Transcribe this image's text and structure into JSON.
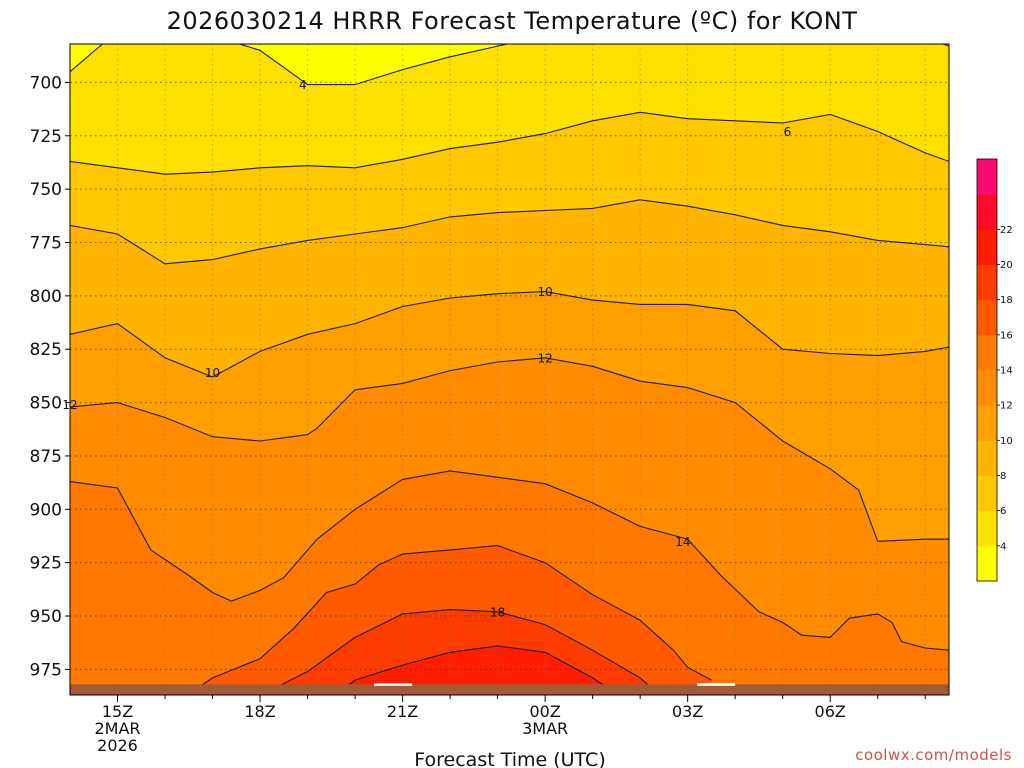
{
  "chart_data": {
    "type": "heatmap",
    "title": "2026030214 HRRR Forecast Temperature (ºC) for KONT",
    "xlabel": "Forecast Time (UTC)",
    "ylabel": "",
    "x_ticks": [
      {
        "hour": 15,
        "lines": [
          "15Z",
          "2MAR",
          "2026"
        ]
      },
      {
        "hour": 18,
        "lines": [
          "18Z"
        ]
      },
      {
        "hour": 21,
        "lines": [
          "21Z"
        ]
      },
      {
        "hour": 24,
        "lines": [
          "00Z",
          "3MAR"
        ]
      },
      {
        "hour": 27,
        "lines": [
          "03Z"
        ]
      },
      {
        "hour": 30,
        "lines": [
          "06Z"
        ]
      }
    ],
    "xlim": [
      14,
      32.5
    ],
    "y_ticks": [
      700,
      725,
      750,
      775,
      800,
      825,
      850,
      875,
      900,
      925,
      950,
      975
    ],
    "ylim": [
      987,
      682
    ],
    "grid": true,
    "colorbar": {
      "placement": "right",
      "levels": [
        2,
        4,
        6,
        8,
        10,
        12,
        14,
        16,
        18,
        20,
        22,
        24
      ],
      "labels": [
        "4",
        "6",
        "8",
        "10",
        "12",
        "14",
        "16",
        "18",
        "20",
        "22"
      ],
      "colors": [
        "#ffff00",
        "#ffe100",
        "#ffc800",
        "#ffb400",
        "#ffa000",
        "#ff8c00",
        "#ff7800",
        "#ff5a00",
        "#ff3c00",
        "#ff1e00",
        "#ff0a28",
        "#ff0a6e"
      ]
    },
    "series": [
      {
        "level": 4,
        "label": "4",
        "points": [
          [
            14,
            695
          ],
          [
            15,
            676
          ],
          [
            16,
            674
          ],
          [
            17,
            678
          ],
          [
            18,
            685
          ],
          [
            19,
            701
          ],
          [
            20,
            701
          ],
          [
            21,
            694
          ],
          [
            22,
            688
          ],
          [
            23,
            683
          ],
          [
            24,
            678
          ],
          [
            25,
            677
          ],
          [
            26,
            675
          ],
          [
            27,
            676
          ],
          [
            28,
            675
          ],
          [
            29,
            673
          ],
          [
            30,
            673
          ],
          [
            31,
            675
          ],
          [
            32,
            679
          ],
          [
            32.5,
            683
          ]
        ],
        "label_pos": [
          [
            18.9,
            701
          ]
        ]
      },
      {
        "level": 6,
        "label": "6",
        "points": [
          [
            14,
            737
          ],
          [
            15,
            740
          ],
          [
            16,
            743
          ],
          [
            17,
            742
          ],
          [
            18,
            740
          ],
          [
            19,
            739
          ],
          [
            20,
            740
          ],
          [
            21,
            736
          ],
          [
            22,
            731
          ],
          [
            23,
            728
          ],
          [
            24,
            724
          ],
          [
            25,
            718
          ],
          [
            26,
            714
          ],
          [
            27,
            717
          ],
          [
            28,
            718
          ],
          [
            29,
            719
          ],
          [
            30,
            715
          ],
          [
            31,
            723
          ],
          [
            32,
            733
          ],
          [
            32.5,
            737
          ]
        ],
        "label_pos": [
          [
            29.1,
            723
          ]
        ]
      },
      {
        "level": 8,
        "label": "",
        "points": [
          [
            14,
            767
          ],
          [
            15,
            771
          ],
          [
            16,
            785
          ],
          [
            17,
            783
          ],
          [
            18,
            778
          ],
          [
            19,
            774
          ],
          [
            20,
            771
          ],
          [
            21,
            768
          ],
          [
            22,
            763
          ],
          [
            23,
            761
          ],
          [
            24,
            760
          ],
          [
            25,
            759
          ],
          [
            26,
            755
          ],
          [
            27,
            758
          ],
          [
            28,
            762
          ],
          [
            29,
            767
          ],
          [
            30,
            770
          ],
          [
            31,
            774
          ],
          [
            32,
            776
          ],
          [
            32.5,
            777
          ]
        ],
        "label_pos": []
      },
      {
        "level": 10,
        "label": "10",
        "points": [
          [
            14,
            818
          ],
          [
            15,
            813
          ],
          [
            16,
            829
          ],
          [
            17,
            838
          ],
          [
            18,
            826
          ],
          [
            19,
            818
          ],
          [
            20,
            813
          ],
          [
            21,
            805
          ],
          [
            22,
            801
          ],
          [
            23,
            799
          ],
          [
            24,
            798
          ],
          [
            25,
            802
          ],
          [
            26,
            804
          ],
          [
            27,
            804
          ],
          [
            28,
            807
          ],
          [
            29,
            825
          ],
          [
            30,
            827
          ],
          [
            31,
            828
          ],
          [
            32,
            826
          ],
          [
            32.5,
            824
          ]
        ],
        "label_pos": [
          [
            17.0,
            836
          ],
          [
            24.0,
            798
          ]
        ]
      },
      {
        "level": 12,
        "label": "12",
        "points": [
          [
            14,
            852
          ],
          [
            15,
            850
          ],
          [
            16,
            857
          ],
          [
            17,
            866
          ],
          [
            18,
            868
          ],
          [
            19,
            865
          ],
          [
            19.2,
            862
          ],
          [
            20,
            844
          ],
          [
            21,
            841
          ],
          [
            22,
            835
          ],
          [
            23,
            831
          ],
          [
            24,
            829
          ],
          [
            25,
            833
          ],
          [
            26,
            840
          ],
          [
            27,
            843
          ],
          [
            28,
            850
          ],
          [
            29,
            868
          ],
          [
            30,
            881
          ],
          [
            30.6,
            891
          ],
          [
            31,
            915
          ],
          [
            32,
            914
          ],
          [
            32.5,
            914
          ]
        ],
        "label_pos": [
          [
            14.0,
            851
          ],
          [
            24.0,
            829
          ]
        ]
      },
      {
        "level": 14,
        "label": "14",
        "points": [
          [
            14,
            887
          ],
          [
            15,
            890
          ],
          [
            15.7,
            919
          ],
          [
            16.5,
            931
          ],
          [
            17,
            939
          ],
          [
            17.4,
            943
          ],
          [
            18,
            938
          ],
          [
            18.5,
            932
          ],
          [
            19.2,
            914
          ],
          [
            20,
            900
          ],
          [
            20.5,
            893
          ],
          [
            21,
            886
          ],
          [
            22,
            882
          ],
          [
            23,
            885
          ],
          [
            24,
            888
          ],
          [
            25,
            897
          ],
          [
            26,
            908
          ],
          [
            27,
            914
          ],
          [
            27.7,
            931
          ],
          [
            28.5,
            948
          ],
          [
            29,
            953
          ],
          [
            29.4,
            959
          ],
          [
            30,
            960
          ],
          [
            30.4,
            951
          ],
          [
            31,
            949
          ],
          [
            31.3,
            953
          ],
          [
            31.5,
            962
          ],
          [
            32,
            965
          ],
          [
            32.5,
            966
          ]
        ],
        "label_pos": [
          [
            26.9,
            915
          ]
        ]
      },
      {
        "level": 16,
        "label": "",
        "points": [
          [
            16.6,
            985
          ],
          [
            17,
            979
          ],
          [
            18,
            970
          ],
          [
            18.7,
            956
          ],
          [
            19.4,
            939
          ],
          [
            20,
            935
          ],
          [
            20.5,
            926
          ],
          [
            21,
            921
          ],
          [
            22,
            919
          ],
          [
            23,
            917
          ],
          [
            24,
            925
          ],
          [
            25,
            940
          ],
          [
            26,
            952
          ],
          [
            26.7,
            966
          ],
          [
            27,
            974
          ],
          [
            27.5,
            980
          ]
        ],
        "label_pos": []
      },
      {
        "level": 18,
        "label": "18",
        "points": [
          [
            18.2,
            985
          ],
          [
            19,
            976
          ],
          [
            20,
            960
          ],
          [
            21,
            949
          ],
          [
            22,
            947
          ],
          [
            23,
            948
          ],
          [
            24,
            954
          ],
          [
            25,
            966
          ],
          [
            26,
            979
          ],
          [
            26.3,
            985
          ]
        ],
        "label_pos": [
          [
            23.0,
            948
          ]
        ]
      },
      {
        "level": 20,
        "label": "",
        "points": [
          [
            19.7,
            985
          ],
          [
            20,
            980
          ],
          [
            21,
            973
          ],
          [
            22,
            967
          ],
          [
            23,
            964
          ],
          [
            24,
            967
          ],
          [
            25,
            979
          ],
          [
            25.4,
            985
          ]
        ],
        "label_pos": []
      },
      {
        "level": 22,
        "label": "",
        "points": [
          [
            21.5,
            985
          ],
          [
            22.3,
            983
          ],
          [
            23,
            983
          ],
          [
            23.8,
            984
          ],
          [
            24.3,
            985
          ]
        ],
        "label_pos": []
      }
    ],
    "ground": {
      "pressure_top": 982,
      "color": "#a15a3a"
    },
    "ground_highlights": [
      [
        20.4,
        21.2
      ],
      [
        27.2,
        28.0
      ]
    ]
  },
  "credit": "coolwx.com/models"
}
